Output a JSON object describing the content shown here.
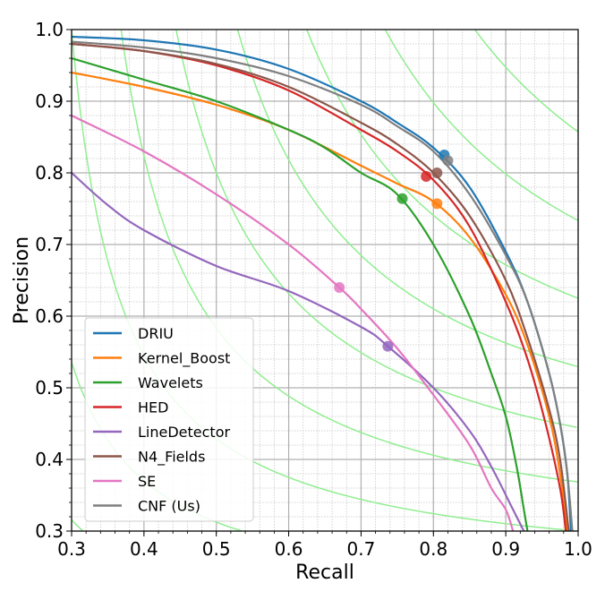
{
  "chart_data": {
    "type": "line",
    "title": "",
    "xlabel": "Recall",
    "ylabel": "Precision",
    "xlim": [
      0.3,
      1.0
    ],
    "ylim": [
      0.3,
      1.0
    ],
    "xticks": [
      "0.3",
      "0.4",
      "0.5",
      "0.6",
      "0.7",
      "0.8",
      "0.9",
      "1.0"
    ],
    "yticks": [
      "0.3",
      "0.4",
      "0.5",
      "0.6",
      "0.7",
      "0.8",
      "0.9",
      "1.0"
    ],
    "grid": {
      "major": true,
      "minor": true,
      "minor_step": 0.02
    },
    "legend_position": "bottom-left",
    "iso_f_color": "#90ee90",
    "iso_f_levels": [
      0.3077,
      0.3846,
      0.4615,
      0.5385,
      0.6154,
      0.6923,
      0.7692,
      0.8462,
      0.9231
    ],
    "series": [
      {
        "name": "DRIU",
        "color": "#1f77b4",
        "marker": [
          0.815,
          0.825
        ],
        "x": [
          0.3,
          0.4,
          0.5,
          0.6,
          0.7,
          0.75,
          0.8,
          0.85,
          0.9,
          0.93,
          0.96,
          0.975,
          0.985,
          0.99
        ],
        "y": [
          0.99,
          0.985,
          0.972,
          0.945,
          0.9,
          0.87,
          0.835,
          0.78,
          0.69,
          0.62,
          0.52,
          0.45,
          0.38,
          0.3
        ]
      },
      {
        "name": "Kernel_Boost",
        "color": "#ff7f0e",
        "marker": [
          0.805,
          0.757
        ],
        "x": [
          0.3,
          0.4,
          0.5,
          0.6,
          0.7,
          0.75,
          0.8,
          0.85,
          0.9,
          0.93,
          0.96,
          0.975,
          0.985
        ],
        "y": [
          0.94,
          0.92,
          0.895,
          0.86,
          0.81,
          0.785,
          0.76,
          0.71,
          0.63,
          0.56,
          0.46,
          0.38,
          0.3
        ]
      },
      {
        "name": "Wavelets",
        "color": "#2ca02c",
        "marker": [
          0.757,
          0.764
        ],
        "x": [
          0.3,
          0.4,
          0.5,
          0.6,
          0.65,
          0.7,
          0.75,
          0.8,
          0.85,
          0.88,
          0.9,
          0.915,
          0.925,
          0.93
        ],
        "y": [
          0.96,
          0.93,
          0.9,
          0.86,
          0.835,
          0.8,
          0.77,
          0.7,
          0.6,
          0.52,
          0.46,
          0.39,
          0.33,
          0.3
        ]
      },
      {
        "name": "HED",
        "color": "#d62728",
        "marker": [
          0.79,
          0.795
        ],
        "x": [
          0.3,
          0.4,
          0.5,
          0.6,
          0.7,
          0.75,
          0.8,
          0.85,
          0.9,
          0.93,
          0.955,
          0.975,
          0.983
        ],
        "y": [
          0.98,
          0.97,
          0.95,
          0.915,
          0.86,
          0.83,
          0.79,
          0.725,
          0.62,
          0.54,
          0.45,
          0.36,
          0.3
        ]
      },
      {
        "name": "LineDetector",
        "color": "#9467bd",
        "marker": [
          0.737,
          0.558
        ],
        "x": [
          0.3,
          0.35,
          0.4,
          0.5,
          0.6,
          0.7,
          0.737,
          0.8,
          0.85,
          0.88,
          0.91,
          0.925
        ],
        "y": [
          0.8,
          0.755,
          0.72,
          0.67,
          0.635,
          0.585,
          0.558,
          0.5,
          0.44,
          0.39,
          0.33,
          0.3
        ]
      },
      {
        "name": "N4_Fields",
        "color": "#8c564b",
        "marker": [
          0.805,
          0.8
        ],
        "x": [
          0.3,
          0.4,
          0.5,
          0.6,
          0.7,
          0.75,
          0.8,
          0.85,
          0.9,
          0.93,
          0.96,
          0.975,
          0.987
        ],
        "y": [
          0.98,
          0.97,
          0.952,
          0.92,
          0.87,
          0.84,
          0.8,
          0.74,
          0.65,
          0.57,
          0.47,
          0.4,
          0.3
        ]
      },
      {
        "name": "SE",
        "color": "#e377c2",
        "marker": [
          0.67,
          0.64
        ],
        "x": [
          0.3,
          0.4,
          0.5,
          0.6,
          0.67,
          0.7,
          0.75,
          0.8,
          0.85,
          0.88,
          0.9,
          0.91
        ],
        "y": [
          0.88,
          0.83,
          0.77,
          0.7,
          0.64,
          0.61,
          0.555,
          0.49,
          0.42,
          0.36,
          0.33,
          0.3
        ]
      },
      {
        "name": "CNF (Us)",
        "color": "#7f7f7f",
        "marker": [
          0.82,
          0.817
        ],
        "x": [
          0.3,
          0.4,
          0.5,
          0.6,
          0.7,
          0.75,
          0.8,
          0.85,
          0.9,
          0.93,
          0.96,
          0.975,
          0.985,
          0.992
        ],
        "y": [
          0.983,
          0.975,
          0.96,
          0.935,
          0.895,
          0.865,
          0.83,
          0.77,
          0.685,
          0.62,
          0.52,
          0.45,
          0.38,
          0.3
        ]
      }
    ]
  }
}
